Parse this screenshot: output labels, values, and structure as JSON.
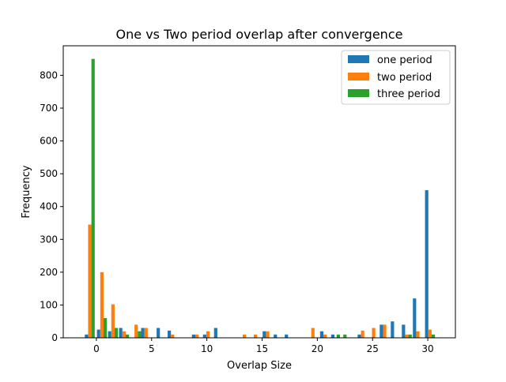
{
  "chart_data": {
    "type": "bar",
    "title": "One vs Two period overlap after convergence",
    "xlabel": "Overlap Size",
    "ylabel": "Frequency",
    "xlim": [
      -3,
      32.5
    ],
    "ylim": [
      0,
      890
    ],
    "xticks": [
      0,
      5,
      10,
      15,
      20,
      25,
      30
    ],
    "yticks": [
      0,
      100,
      200,
      300,
      400,
      500,
      600,
      700,
      800
    ],
    "bar_width": 0.3,
    "legend_position": "top-right",
    "series": [
      {
        "name": "one period",
        "color": "#1f77b4",
        "points": [
          {
            "x": -0.9,
            "y": 10
          },
          {
            "x": 0.2,
            "y": 25
          },
          {
            "x": 1.2,
            "y": 20
          },
          {
            "x": 2.2,
            "y": 30
          },
          {
            "x": 4.2,
            "y": 30
          },
          {
            "x": 5.6,
            "y": 30
          },
          {
            "x": 6.6,
            "y": 22
          },
          {
            "x": 8.8,
            "y": 10
          },
          {
            "x": 9.8,
            "y": 10
          },
          {
            "x": 10.8,
            "y": 30
          },
          {
            "x": 15.2,
            "y": 20
          },
          {
            "x": 16.2,
            "y": 10
          },
          {
            "x": 17.2,
            "y": 10
          },
          {
            "x": 20.4,
            "y": 20
          },
          {
            "x": 21.4,
            "y": 10
          },
          {
            "x": 23.8,
            "y": 10
          },
          {
            "x": 25.8,
            "y": 40
          },
          {
            "x": 26.8,
            "y": 50
          },
          {
            "x": 27.8,
            "y": 40
          },
          {
            "x": 28.8,
            "y": 120
          },
          {
            "x": 29.9,
            "y": 450
          }
        ]
      },
      {
        "name": "two period",
        "color": "#ff7f0e",
        "points": [
          {
            "x": -0.6,
            "y": 345
          },
          {
            "x": 0.5,
            "y": 200
          },
          {
            "x": 1.5,
            "y": 102
          },
          {
            "x": 2.5,
            "y": 20
          },
          {
            "x": 3.6,
            "y": 40
          },
          {
            "x": 4.5,
            "y": 30
          },
          {
            "x": 6.9,
            "y": 10
          },
          {
            "x": 9.1,
            "y": 10
          },
          {
            "x": 10.1,
            "y": 20
          },
          {
            "x": 13.4,
            "y": 10
          },
          {
            "x": 14.4,
            "y": 10
          },
          {
            "x": 15.5,
            "y": 20
          },
          {
            "x": 19.6,
            "y": 30
          },
          {
            "x": 20.7,
            "y": 10
          },
          {
            "x": 24.1,
            "y": 22
          },
          {
            "x": 25.1,
            "y": 30
          },
          {
            "x": 26.1,
            "y": 40
          },
          {
            "x": 28.1,
            "y": 10
          },
          {
            "x": 29.1,
            "y": 20
          },
          {
            "x": 30.2,
            "y": 25
          }
        ]
      },
      {
        "name": "three period",
        "color": "#2ca02c",
        "points": [
          {
            "x": -0.3,
            "y": 850
          },
          {
            "x": 0.8,
            "y": 60
          },
          {
            "x": 1.8,
            "y": 30
          },
          {
            "x": 2.8,
            "y": 10
          },
          {
            "x": 3.9,
            "y": 20
          },
          {
            "x": 21.9,
            "y": 10
          },
          {
            "x": 22.5,
            "y": 10
          },
          {
            "x": 28.4,
            "y": 10
          },
          {
            "x": 30.5,
            "y": 10
          }
        ]
      }
    ]
  }
}
